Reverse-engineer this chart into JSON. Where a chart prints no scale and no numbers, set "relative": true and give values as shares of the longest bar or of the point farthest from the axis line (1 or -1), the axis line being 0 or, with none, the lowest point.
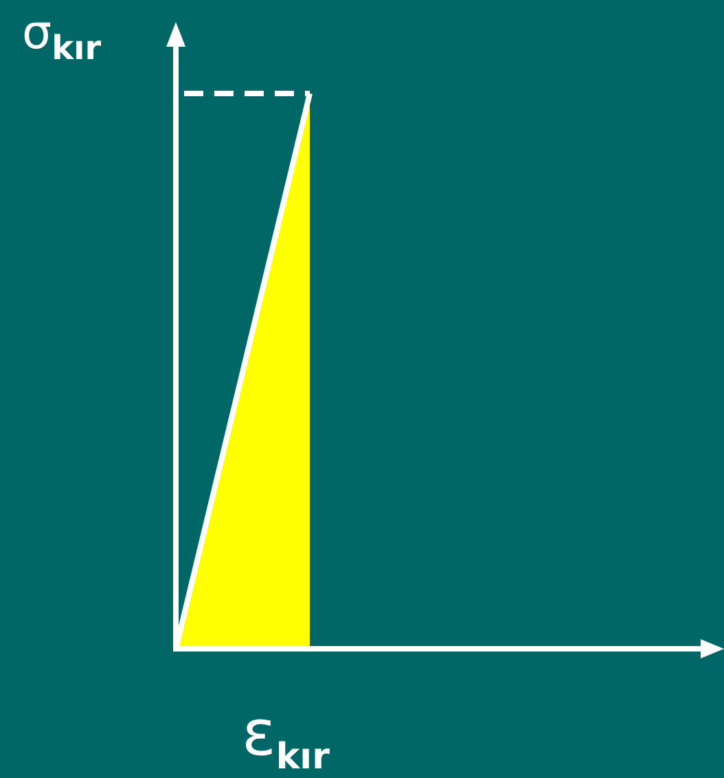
{
  "chart_data": {
    "type": "area",
    "relative": true,
    "xlabel": "ε$_{kır}$",
    "ylabel": "σ$_{kır}$",
    "categories": [
      null,
      null,
      null,
      null,
      null
    ],
    "series": [
      {
        "color": "#ffff00",
        "values": [
          0,
          1,
          null,
          null,
          null
        ]
      }
    ],
    "ref_lines": [
      {
        "axis": "y",
        "value": 1,
        "color": "#ffffff",
        "line_style": "dashed"
      }
    ],
    "legend": false,
    "marker": "none"
  }
}
